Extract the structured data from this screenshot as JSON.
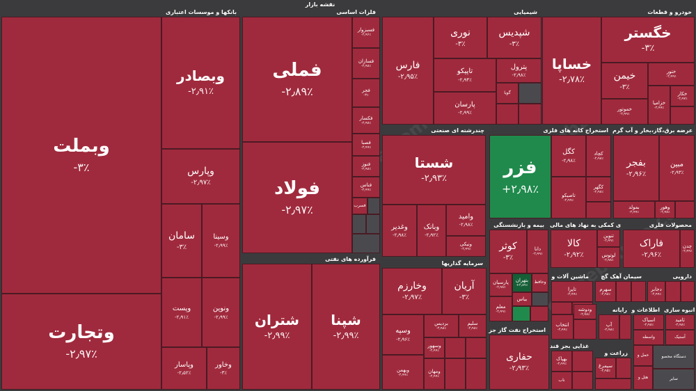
{
  "title": "نقشه بازار",
  "watermark": "nabzebourse.com",
  "colors": {
    "down": "#a02a3d",
    "up": "#1f8a4c",
    "background": "#3b3b3d"
  },
  "sectors": {
    "banks": "بانکها و موسسات اعتباری",
    "metals": "فلزات اساسی",
    "chemical": "شیمیایی",
    "auto": "خودرو و قطعات",
    "multi": "چندرشته ای صنعتی",
    "mining": "استخراج کانه های فلزی",
    "utility": "عرضه برق،گاز،بخار و آب گرم",
    "oil": "فرآورده های نفتی",
    "insurance": "بیمه و بازنشستگی",
    "support": "فعالیتهای کمکی به نهاد های مالی",
    "metalproducts": "محصولات فلزی",
    "investment": "سرمایه گذاریها",
    "machinery": "ماشین آلات و",
    "cement": "سیمان آهک گچ",
    "pharma": "دارویی",
    "oilgas": "استخراج نفت گاز جز",
    "computer": "رایانه",
    "telecom": "اطلاعات و",
    "construction": "انبوه سازی",
    "food": "غذایی بجز قند",
    "agri": "زراعت و"
  },
  "tiles": {
    "vbmellat": {
      "name": "وبملت",
      "pct": "-۳٪"
    },
    "vtejarat": {
      "name": "وتجارت",
      "pct": "-۲٫۹۷٪"
    },
    "vbsader": {
      "name": "وبصادر",
      "pct": "-۲٫۹۱٪"
    },
    "vpars": {
      "name": "وپارس",
      "pct": "-۲٫۹۷٪"
    },
    "saman": {
      "name": "سامان",
      "pct": "-۳٪"
    },
    "vsina": {
      "name": "وسینا",
      "pct": "-۲٫۹۹٪"
    },
    "vpost": {
      "name": "وپست",
      "pct": "-۲٫۹۱٪"
    },
    "vnovin": {
      "name": "ونوین",
      "pct": "-۲٫۹۹٪"
    },
    "vpasar": {
      "name": "وپاسار",
      "pct": "-۲٫۵۲٪"
    },
    "vkhavar": {
      "name": "وخاور",
      "pct": "-۳٪"
    },
    "fameli": {
      "name": "فملی",
      "pct": "-۲٫۸۹٪"
    },
    "foolad": {
      "name": "فولاد",
      "pct": "-۲٫۹۷٪"
    },
    "fsarv": {
      "name": "فسرب",
      "pct": "-۲٫۹۶٪"
    },
    "fesabzevar": {
      "name": "فسبزوار",
      "pct": "-۲٫۹۶٪"
    },
    "fesaran": {
      "name": "فسازان",
      "pct": "-۲٫۹۸٪"
    },
    "fajr": {
      "name": "فجر",
      "pct": "-۳٪"
    },
    "feksar": {
      "name": "فکسار",
      "pct": "-۲٫۹۸٪"
    },
    "fesapa": {
      "name": "فصبا",
      "pct": "-۲٫۹۹٪"
    },
    "fenvoz": {
      "name": "فنوز",
      "pct": "-۲٫۹۸٪"
    },
    "fenas": {
      "name": "فناس",
      "pct": "-۲٫۹۹٪"
    },
    "fars": {
      "name": "فارس",
      "pct": "-۲٫۹۵٪"
    },
    "noori": {
      "name": "نوری",
      "pct": "-۳٪"
    },
    "shapdis": {
      "name": "شپدیس",
      "pct": "-۳٪"
    },
    "tapiko": {
      "name": "تاپیکو",
      "pct": "-۲٫۹۴٪"
    },
    "petrol": {
      "name": "پترول",
      "pct": "-۲٫۹۸٪"
    },
    "parsan": {
      "name": "پارسان",
      "pct": "-۲٫۹۹٪"
    },
    "gova": {
      "name": "گویا",
      "pct": ""
    },
    "khesapa": {
      "name": "خساپا",
      "pct": "-۲٫۷۸٪"
    },
    "khegostar": {
      "name": "خگستر",
      "pct": "-۳٪"
    },
    "kheyman": {
      "name": "خیمن",
      "pct": "-۳٪"
    },
    "khenoor": {
      "name": "ختور",
      "pct": "-۲٫۹۹٪"
    },
    "khemnotor": {
      "name": "خموتور",
      "pct": "-۲٫۹۹٪"
    },
    "khekar": {
      "name": "خکار",
      "pct": "-۲٫۹۷٪"
    },
    "khezamia": {
      "name": "خزامیا",
      "pct": "-۲٫۹۹٪"
    },
    "shasta": {
      "name": "شستا",
      "pct": "-۲٫۹۳٪"
    },
    "vamid": {
      "name": "وامید",
      "pct": "-۲٫۹۸٪"
    },
    "vghadir": {
      "name": "وغدیر",
      "pct": "-۲٫۹۸٪"
    },
    "vebank": {
      "name": "وبانک",
      "pct": "-۲٫۹۲٪"
    },
    "vnikey": {
      "name": "ونیکی",
      "pct": "-۲٫۹۹٪"
    },
    "fazr": {
      "name": "فزر",
      "pct": "+۲٫۹۸٪"
    },
    "kegol": {
      "name": "کگل",
      "pct": "-۲٫۹۸٪"
    },
    "kechad": {
      "name": "کچاد",
      "pct": "-۲٫۹۸٪"
    },
    "tapiko2": {
      "name": "تاصیکو",
      "pct": "-۲٫۹۹٪"
    },
    "keghal": {
      "name": "کگهر",
      "pct": "-۲٫۹۸٪"
    },
    "bafjar": {
      "name": "بفجر",
      "pct": "-۲٫۹۶٪"
    },
    "mobin": {
      "name": "مبین",
      "pct": "-۲٫۹۳٪"
    },
    "bemoled": {
      "name": "بمولد",
      "pct": "-۲٫۹۹٪"
    },
    "vehor": {
      "name": "وهور",
      "pct": "-۲٫۹۸٪"
    },
    "shetran": {
      "name": "شتران",
      "pct": "-۲٫۹۹٪"
    },
    "shepna": {
      "name": "شپنا",
      "pct": "-۲٫۹۹٪"
    },
    "kowsar": {
      "name": "کوثر",
      "pct": "-۳٪"
    },
    "dana": {
      "name": "دانا",
      "pct": "-۲٫۹۹٪"
    },
    "kala": {
      "name": "کالا",
      "pct": "-۲٫۹۲٪"
    },
    "tenvin": {
      "name": "تنوین",
      "pct": "-۲٫۹۹٪"
    },
    "lotus": {
      "name": "لوتوس",
      "pct": "-۲٫۹۸٪"
    },
    "farak": {
      "name": "فاراک",
      "pct": "-۲٫۹۶٪"
    },
    "chedan": {
      "name": "چدن",
      "pct": "-۲٫۹۹٪"
    },
    "vkharazm": {
      "name": "وخارزم",
      "pct": "-۲٫۹۷٪"
    },
    "arian": {
      "name": "آریان",
      "pct": "-۳٪"
    },
    "vsepah": {
      "name": "وسپه",
      "pct": "-۲٫۹۶٪"
    },
    "beradis": {
      "name": "بردیس",
      "pct": "-۲٫۹۸٪"
    },
    "salim": {
      "name": "سلیم",
      "pct": "-۲٫۹۸٪"
    },
    "vsehor": {
      "name": "وسهور",
      "pct": "-۲٫۹۹٪"
    },
    "vbahman": {
      "name": "وبهمن",
      "pct": "-۲٫۹۹٪"
    },
    "vemahan": {
      "name": "ومهان",
      "pct": "-۲٫۹۹٪"
    },
    "btehran": {
      "name": "بتهران",
      "pct": "+۲٫۸۹٪"
    },
    "vhafez": {
      "name": "وحافظ",
      "pct": "-۲٫۹۸٪"
    },
    "parsian": {
      "name": "پارسیان",
      "pct": "-۲٫۹۸٪"
    },
    "bima": {
      "name": "بیاس",
      "pct": "-۲٫۹۹٪"
    },
    "moallem": {
      "name": "معلم",
      "pct": "-۲٫۹۹٪"
    },
    "tapira": {
      "name": "تاپرا",
      "pct": "-۲٫۹۹٪"
    },
    "sahrom": {
      "name": "سهرم",
      "pct": "-۲٫۹۸٪"
    },
    "dajaber": {
      "name": "دجابر",
      "pct": "-۲٫۹۹٪"
    },
    "hafari": {
      "name": "حفاری",
      "pct": "-۲٫۹۳٪"
    },
    "vedosheh": {
      "name": "ودوشه",
      "pct": "-۲٫۹۸٪"
    },
    "entekhab": {
      "name": "انتخاب",
      "pct": "-۲٫۹۹٪"
    },
    "ap": {
      "name": "آپ",
      "pct": "-۲٫۹۸٪"
    },
    "asyak": {
      "name": "اسیاک",
      "pct": "-۲٫۹۸٪"
    },
    "tamid": {
      "name": "ثامید",
      "pct": "-۲٫۹۸٪"
    },
    "vsata": {
      "name": "واسطه",
      "pct": ""
    },
    "astik": {
      "name": "آستیک",
      "pct": ""
    },
    "bahpak": {
      "name": "بهپاک",
      "pct": "-۲٫۹۹٪"
    },
    "simorgh": {
      "name": "سیمرغ",
      "pct": "-۲٫۹۵٪"
    },
    "nab": {
      "name": "ناب",
      "pct": ""
    },
    "hamlo": {
      "name": "حمل و",
      "pct": ""
    },
    "hotel": {
      "name": "هتل و",
      "pct": ""
    },
    "mohaseb": {
      "name": "دستگاه محصو",
      "pct": ""
    },
    "saber": {
      "name": "ساير",
      "pct": ""
    }
  }
}
